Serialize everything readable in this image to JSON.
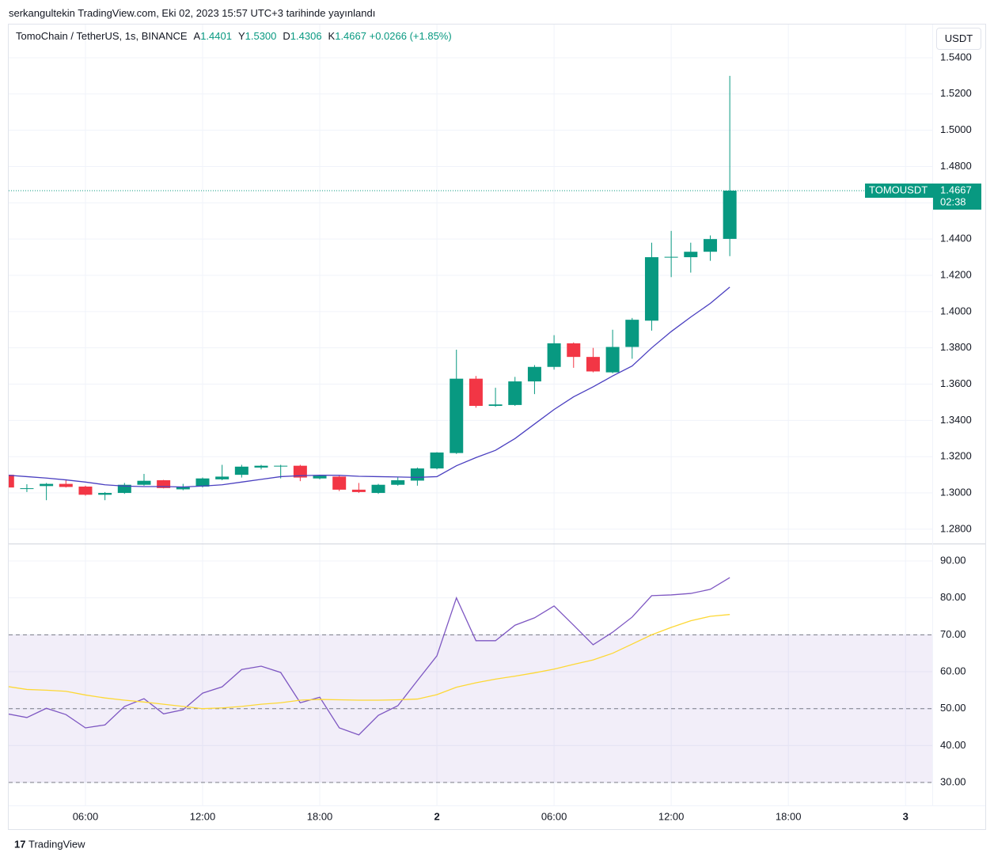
{
  "published": "serkangultekin TradingView.com, Eki 02, 2023 15:57 UTC+3 tarihinde yayınlandı",
  "currency_button": "USDT",
  "brand": "TradingView",
  "legend": {
    "symbol": "TomoChain / TetherUS, 1s, BINANCE",
    "items": [
      {
        "key": "A",
        "text": "1.4401"
      },
      {
        "key": "Y",
        "text": "1.5300"
      },
      {
        "key": "D",
        "text": "1.4306"
      },
      {
        "key": "K",
        "text": "1.4667"
      }
    ],
    "change": "+0.0266 (+1.85%)"
  },
  "price_tag": {
    "symbol": "TOMOUSDT",
    "price": "1.4667",
    "countdown": "02:38"
  },
  "chart_data": [
    {
      "type": "candlestick",
      "x": [
        2,
        3,
        4,
        5,
        6,
        7,
        8,
        9,
        10,
        11,
        12,
        13,
        14,
        15,
        16,
        17,
        18,
        19,
        20,
        21,
        22,
        23,
        24,
        25,
        26,
        27,
        28,
        29,
        30,
        31,
        32,
        33,
        34,
        35,
        36,
        37,
        38,
        39
      ],
      "open": [
        1.31,
        1.3022,
        1.3038,
        1.305,
        1.3035,
        1.299,
        1.3,
        1.3045,
        1.307,
        1.302,
        1.3035,
        1.3075,
        1.31,
        1.314,
        1.3148,
        1.315,
        1.308,
        1.309,
        1.3018,
        1.3,
        1.3045,
        1.3068,
        1.3135,
        1.322,
        1.363,
        1.348,
        1.3485,
        1.3615,
        1.3695,
        1.3825,
        1.375,
        1.3665,
        1.3805,
        1.395,
        1.43,
        1.43,
        1.433,
        1.4401
      ],
      "high": [
        1.31,
        1.3048,
        1.3055,
        1.3075,
        1.304,
        1.3005,
        1.3055,
        1.3105,
        1.3072,
        1.305,
        1.3085,
        1.3155,
        1.3155,
        1.3155,
        1.3155,
        1.3155,
        1.31,
        1.3095,
        1.3055,
        1.305,
        1.3085,
        1.314,
        1.3225,
        1.379,
        1.3645,
        1.358,
        1.364,
        1.3705,
        1.387,
        1.383,
        1.38,
        1.39,
        1.3965,
        1.438,
        1.4445,
        1.438,
        1.442,
        1.53
      ],
      "low": [
        1.303,
        1.3005,
        1.296,
        1.303,
        1.2985,
        1.296,
        1.2995,
        1.304,
        1.3025,
        1.3015,
        1.303,
        1.307,
        1.3085,
        1.313,
        1.308,
        1.3065,
        1.3075,
        1.301,
        1.3,
        1.2995,
        1.304,
        1.304,
        1.313,
        1.3215,
        1.347,
        1.3475,
        1.348,
        1.3545,
        1.368,
        1.369,
        1.3665,
        1.366,
        1.374,
        1.3895,
        1.419,
        1.4215,
        1.428,
        1.4306
      ],
      "close": [
        1.303,
        1.3026,
        1.305,
        1.3033,
        1.299,
        1.3,
        1.3045,
        1.3067,
        1.3027,
        1.3035,
        1.308,
        1.309,
        1.3145,
        1.315,
        1.315,
        1.3085,
        1.3095,
        1.3018,
        1.3005,
        1.3045,
        1.307,
        1.3135,
        1.3223,
        1.363,
        1.348,
        1.3488,
        1.3615,
        1.3695,
        1.3825,
        1.375,
        1.367,
        1.3805,
        1.3955,
        1.43,
        1.4302,
        1.433,
        1.44,
        1.4667
      ],
      "up_color": "#089981",
      "down_color": "#f23645",
      "series": [
        {
          "color": "#4a3fc0",
          "values": [
            1.3098,
            1.309,
            1.3082,
            1.3072,
            1.306,
            1.3045,
            1.3038,
            1.3035,
            1.3035,
            1.3033,
            1.3038,
            1.3045,
            1.306,
            1.3075,
            1.309,
            1.3095,
            1.3098,
            1.3097,
            1.3092,
            1.309,
            1.3088,
            1.3086,
            1.309,
            1.315,
            1.3195,
            1.3235,
            1.33,
            1.338,
            1.346,
            1.353,
            1.3585,
            1.3645,
            1.37,
            1.38,
            1.389,
            1.397,
            1.4045,
            1.4135
          ]
        }
      ],
      "xlim": [
        2.07,
        49.37
      ],
      "ylim": [
        1.2721,
        1.5583
      ],
      "yticks": [
        {
          "value": 1.28,
          "label": "1.2800"
        },
        {
          "value": 1.3,
          "label": "1.3000"
        },
        {
          "value": 1.32,
          "label": "1.3200"
        },
        {
          "value": 1.34,
          "label": "1.3400"
        },
        {
          "value": 1.36,
          "label": "1.3600"
        },
        {
          "value": 1.38,
          "label": "1.3800"
        },
        {
          "value": 1.4,
          "label": "1.4000"
        },
        {
          "value": 1.42,
          "label": "1.4200"
        },
        {
          "value": 1.44,
          "label": "1.4400"
        },
        {
          "value": 1.46,
          "label": "1.4600"
        },
        {
          "value": 1.48,
          "label": "1.4800"
        },
        {
          "value": 1.5,
          "label": "1.5000"
        },
        {
          "value": 1.52,
          "label": "1.5200"
        },
        {
          "value": 1.54,
          "label": "1.5400"
        }
      ],
      "grid": true
    },
    {
      "type": "line",
      "x": [
        2,
        3,
        4,
        5,
        6,
        7,
        8,
        9,
        10,
        11,
        12,
        13,
        14,
        15,
        16,
        17,
        18,
        19,
        20,
        21,
        22,
        23,
        24,
        25,
        26,
        27,
        28,
        29,
        30,
        31,
        32,
        33,
        34,
        35,
        36,
        37,
        38,
        39
      ],
      "series": [
        {
          "color": "#7e57c2",
          "values": [
            48.6,
            47.6,
            50.1,
            48.4,
            44.8,
            45.6,
            50.6,
            52.7,
            48.6,
            49.7,
            54.2,
            55.9,
            60.6,
            61.5,
            59.8,
            51.6,
            53.1,
            44.8,
            42.9,
            48.2,
            50.8,
            57.6,
            64.3,
            80.0,
            68.4,
            68.4,
            72.6,
            74.6,
            77.8,
            72.6,
            67.3,
            70.7,
            74.8,
            80.6,
            80.8,
            81.2,
            82.3,
            85.5
          ]
        },
        {
          "color": "#fdd835",
          "values": [
            56.0,
            55.2,
            55.0,
            54.7,
            53.7,
            52.9,
            52.3,
            51.8,
            51.2,
            50.6,
            50.0,
            50.2,
            50.6,
            51.2,
            51.6,
            52.3,
            52.5,
            52.4,
            52.3,
            52.3,
            52.4,
            52.6,
            53.8,
            55.8,
            57.0,
            58.0,
            58.8,
            59.7,
            60.7,
            62.0,
            63.2,
            65.0,
            67.5,
            70.0,
            72.0,
            73.8,
            75.0,
            75.5
          ]
        }
      ],
      "levels": [
        70,
        50,
        30
      ],
      "band": [
        30,
        70
      ],
      "band_color": "#7e57c2",
      "xlim": [
        2.07,
        49.37
      ],
      "ylim": [
        23.8,
        94.5
      ],
      "yticks": [
        {
          "value": 30,
          "label": "30.00"
        },
        {
          "value": 40,
          "label": "40.00"
        },
        {
          "value": 50,
          "label": "50.00"
        },
        {
          "value": 60,
          "label": "60.00"
        },
        {
          "value": 70,
          "label": "70.00"
        },
        {
          "value": 80,
          "label": "80.00"
        },
        {
          "value": 90,
          "label": "90.00"
        }
      ],
      "xticks": [
        {
          "value": 6,
          "label": "06:00"
        },
        {
          "value": 12,
          "label": "12:00"
        },
        {
          "value": 18,
          "label": "18:00"
        },
        {
          "value": 24,
          "label": "2"
        },
        {
          "value": 30,
          "label": "06:00"
        },
        {
          "value": 36,
          "label": "12:00"
        },
        {
          "value": 42,
          "label": "18:00"
        },
        {
          "value": 48,
          "label": "3"
        }
      ],
      "grid": true
    }
  ]
}
